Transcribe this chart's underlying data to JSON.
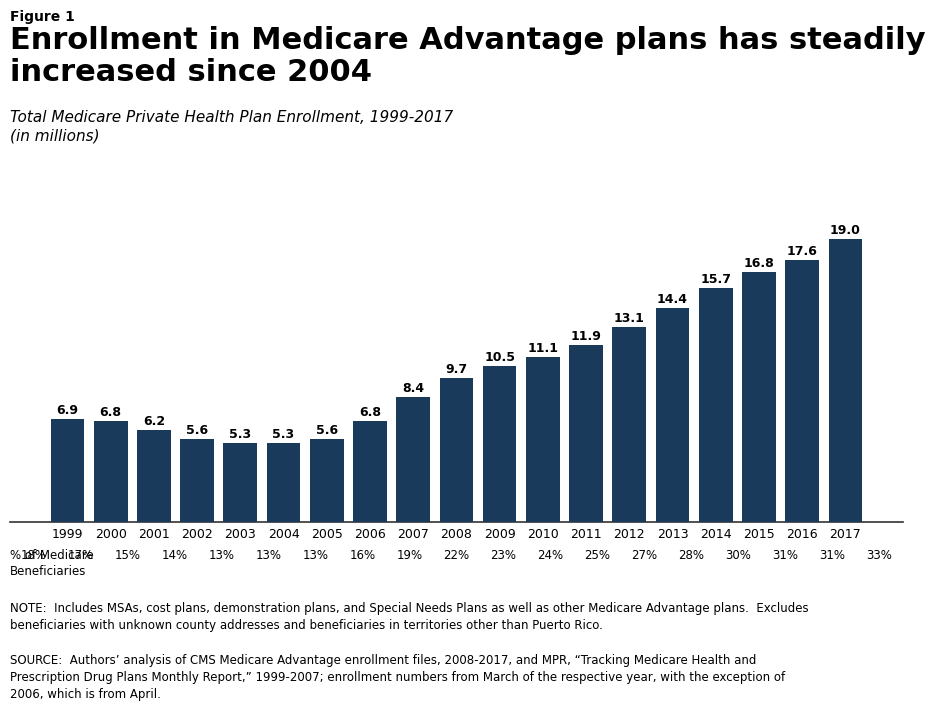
{
  "figure_label": "Figure 1",
  "title": "Enrollment in Medicare Advantage plans has steadily\nincreased since 2004",
  "subtitle": "Total Medicare Private Health Plan Enrollment, 1999-2017\n(in millions)",
  "years": [
    1999,
    2000,
    2001,
    2002,
    2003,
    2004,
    2005,
    2006,
    2007,
    2008,
    2009,
    2010,
    2011,
    2012,
    2013,
    2014,
    2015,
    2016,
    2017
  ],
  "values": [
    6.9,
    6.8,
    6.2,
    5.6,
    5.3,
    5.3,
    5.6,
    6.8,
    8.4,
    9.7,
    10.5,
    11.1,
    11.9,
    13.1,
    14.4,
    15.7,
    16.8,
    17.6,
    19.0
  ],
  "pct_beneficiaries": [
    "18%",
    "17%",
    "15%",
    "14%",
    "13%",
    "13%",
    "13%",
    "16%",
    "19%",
    "22%",
    "23%",
    "24%",
    "25%",
    "27%",
    "28%",
    "30%",
    "31%",
    "31%",
    "33%"
  ],
  "bar_color": "#1a3a5c",
  "background_color": "#ffffff",
  "note_text": "NOTE:  Includes MSAs, cost plans, demonstration plans, and Special Needs Plans as well as other Medicare Advantage plans.  Excludes\nbeneficiaries with unknown county addresses and beneficiaries in territories other than Puerto Rico.",
  "source_text": "SOURCE:  Authors’ analysis of CMS Medicare Advantage enrollment files, 2008-2017, and MPR, “Tracking Medicare Health and\nPrescription Drug Plans Monthly Report,” 1999-2007; enrollment numbers from March of the respective year, with the exception of\n2006, which is from April.",
  "ylim": [
    0,
    22
  ],
  "logo_color": "#1a3a5c",
  "figure_label_fontsize": 10,
  "title_fontsize": 22,
  "subtitle_fontsize": 11,
  "bar_label_fontsize": 9,
  "xtick_fontsize": 9,
  "pct_fontsize": 8.5,
  "note_fontsize": 8.5,
  "source_fontsize": 8.5
}
